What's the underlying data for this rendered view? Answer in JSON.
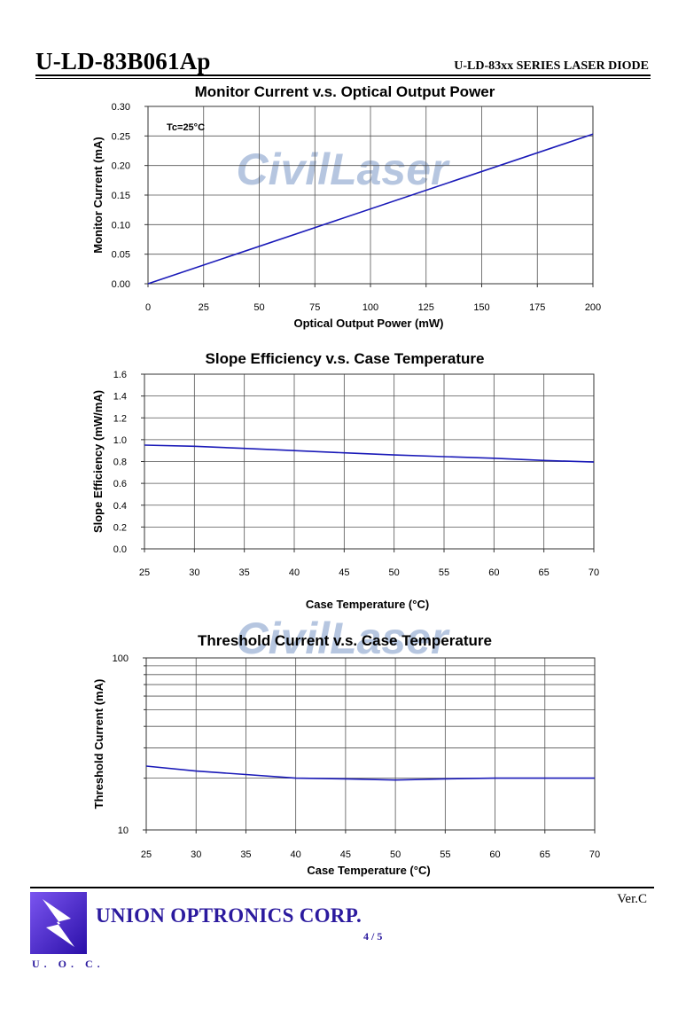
{
  "header": {
    "model": "U-LD-83B061Ap",
    "series": "U-LD-83xx SERIES LASER DIODE"
  },
  "watermark": "CivilLaser",
  "colors": {
    "line": "#1a1ab8",
    "grid": "#555555",
    "brand": "#2b1a9e",
    "watermark": "#9db3d6"
  },
  "chart_data": [
    {
      "type": "line",
      "title": "Monitor Current v.s. Optical Output Power",
      "xlabel": "Optical Output Power (mW)",
      "ylabel": "Monitor Current (mA)",
      "annotation": "Tc=25°C",
      "xlim": [
        0,
        200
      ],
      "ylim": [
        0,
        0.3
      ],
      "xticks": [
        "0",
        "25",
        "50",
        "75",
        "100",
        "125",
        "150",
        "175",
        "200"
      ],
      "yticks": [
        "0.00",
        "0.05",
        "0.10",
        "0.15",
        "0.20",
        "0.25",
        "0.30"
      ],
      "grid": true,
      "series": [
        {
          "x": [
            0,
            200
          ],
          "y": [
            0.0,
            0.253
          ]
        }
      ]
    },
    {
      "type": "line",
      "title": "Slope Efficiency v.s. Case Temperature",
      "xlabel": "Case Temperature (°C)",
      "ylabel": "Slope Efficiency (mW/mA)",
      "xlim": [
        25,
        70
      ],
      "ylim": [
        0,
        1.6
      ],
      "xticks": [
        "25",
        "30",
        "35",
        "40",
        "45",
        "50",
        "55",
        "60",
        "65",
        "70"
      ],
      "yticks": [
        "0.0",
        "0.2",
        "0.4",
        "0.6",
        "0.8",
        "1.0",
        "1.2",
        "1.4",
        "1.6"
      ],
      "grid": true,
      "series": [
        {
          "x": [
            25,
            30,
            35,
            40,
            45,
            50,
            55,
            60,
            65,
            70
          ],
          "y": [
            0.95,
            0.94,
            0.92,
            0.9,
            0.88,
            0.86,
            0.845,
            0.83,
            0.81,
            0.795
          ]
        }
      ]
    },
    {
      "type": "line",
      "title": "Threshold Current v.s. Case Temperature",
      "xlabel": "Case Temperature (°C)",
      "ylabel": "Threshold Current (mA)",
      "xlim": [
        25,
        70
      ],
      "ylim": [
        10,
        100
      ],
      "yscale": "log",
      "xticks": [
        "25",
        "30",
        "35",
        "40",
        "45",
        "50",
        "55",
        "60",
        "65",
        "70"
      ],
      "yticks": [
        "10",
        "100"
      ],
      "grid": true,
      "series": [
        {
          "x": [
            25,
            30,
            35,
            40,
            45,
            50,
            55,
            60,
            65,
            70
          ],
          "y": [
            23.5,
            22,
            21,
            20,
            19.8,
            19.5,
            19.8,
            20,
            20,
            20
          ]
        }
      ]
    }
  ],
  "footer": {
    "version": "Ver.C",
    "company": "UNION OPTRONICS CORP.",
    "page": "4 / 5",
    "logo_text": "U. O. C."
  }
}
